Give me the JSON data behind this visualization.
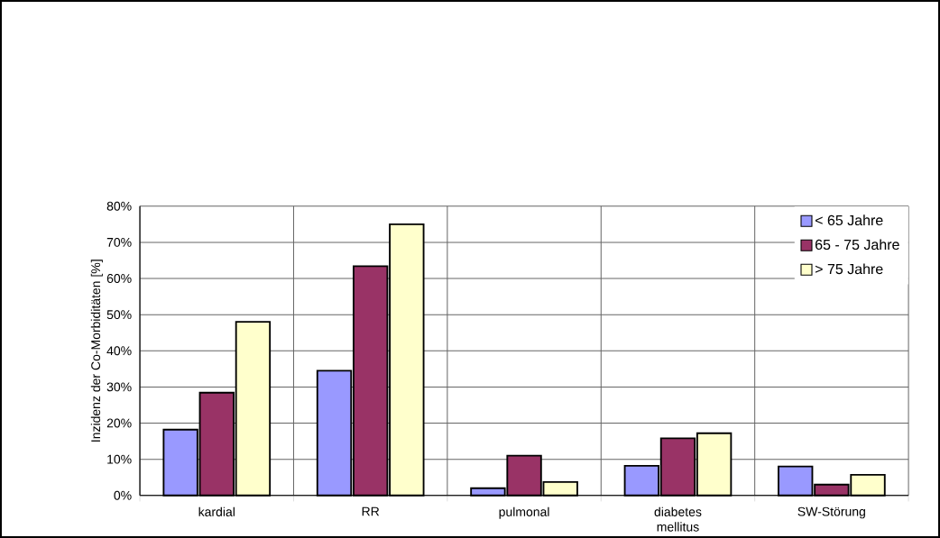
{
  "chart_data": {
    "type": "bar",
    "ylabel": "Inzidenz der Co-Morbiditäten [%]",
    "categories": [
      "kardial",
      "RR",
      "pulmonal",
      "diabetes mellitus",
      "SW-Störung"
    ],
    "series": [
      {
        "name": "< 65 Jahre",
        "color": "#9999ff",
        "values": [
          18.2,
          34.5,
          2.0,
          8.2,
          8.0
        ]
      },
      {
        "name": "65 - 75 Jahre",
        "color": "#993366",
        "values": [
          28.4,
          63.4,
          11.0,
          15.8,
          3.0
        ]
      },
      {
        "name": ">  75 Jahre",
        "color": "#ffffcc",
        "values": [
          48.0,
          75.0,
          3.7,
          17.2,
          5.7
        ]
      }
    ],
    "ylim": [
      0,
      80
    ],
    "yticks": [
      {
        "value": 0,
        "label": "0%"
      },
      {
        "value": 10,
        "label": "10%"
      },
      {
        "value": 20,
        "label": "20%"
      },
      {
        "value": 30,
        "label": "30%"
      },
      {
        "value": 40,
        "label": "40%"
      },
      {
        "value": 50,
        "label": "50%"
      },
      {
        "value": 60,
        "label": "60%"
      },
      {
        "value": 70,
        "label": "70%"
      },
      {
        "value": 80,
        "label": "80%"
      }
    ],
    "grid": true,
    "legend": "top right"
  }
}
